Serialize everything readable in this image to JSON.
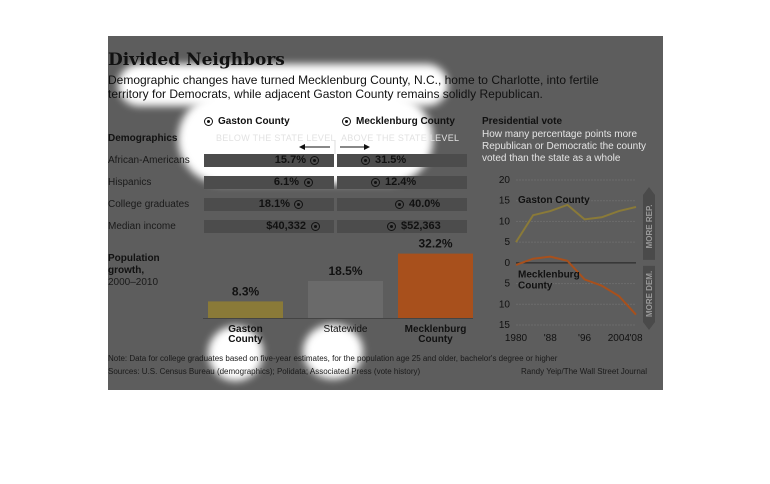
{
  "header": {
    "title": "Divided Neighbors",
    "subtitle": "Demographic changes have turned Mecklenburg County, N.C., home to Charlotte, into fertile territory for Democrats, while adjacent Gaston County remains solidly Republican."
  },
  "legend": {
    "gaston": "Gaston County",
    "mecklenburg": "Mecklenburg County",
    "below": "BELOW THE STATE LEVEL",
    "above": "ABOVE THE STATE LEVEL"
  },
  "demographics": {
    "heading": "Demographics",
    "rows": [
      {
        "label": "African-Americans",
        "gaston": "15.7%",
        "mecklenburg": "31.5%"
      },
      {
        "label": "Hispanics",
        "gaston": "6.1%",
        "mecklenburg": "12.4%"
      },
      {
        "label": "College graduates",
        "gaston": "18.1%",
        "mecklenburg": "40.0%"
      },
      {
        "label": "Median income",
        "gaston": "$40,332",
        "mecklenburg": "$52,363"
      }
    ]
  },
  "population": {
    "title": "Population growth,",
    "period": "2000–2010"
  },
  "presidential": {
    "title": "Presidential vote",
    "description": "How many percentage points more Republican or Democratic the county voted than the state as a whole",
    "more_rep": "MORE REP.",
    "more_dem": "MORE DEM."
  },
  "footer": {
    "note": "Note: Data for college graduates based on five-year estimates, for the population age 25 and older, bachelor's degree or higher",
    "sources": "Sources: U.S. Census Bureau (demographics); Polidata; Associated Press (vote history)",
    "credit": "Randy Yeip/The Wall Street Journal"
  },
  "colors": {
    "gaston": "#8a7a38",
    "statewide": "#6a6a6a",
    "mecklenburg": "#a8501c",
    "panel": "#5d5d5d"
  },
  "chart_data": [
    {
      "type": "bar",
      "categories": [
        "Gaston County",
        "Statewide",
        "Mecklenburg County"
      ],
      "values": [
        8.3,
        18.5,
        32.2
      ],
      "labels": [
        "8.3%",
        "18.5%",
        "32.2%"
      ],
      "ylim": [
        0,
        35
      ]
    },
    {
      "type": "line",
      "title": "Presidential vote",
      "x": [
        1980,
        1984,
        1988,
        1992,
        1996,
        2000,
        2004,
        2008
      ],
      "x_tick_labels": [
        "1980",
        "'88",
        "'96",
        "2004",
        "'08"
      ],
      "x_ticks": [
        1980,
        1988,
        1996,
        2004,
        2008
      ],
      "y_tick_labels": [
        "20",
        "15",
        "10",
        "5",
        "0",
        "5",
        "10",
        "15"
      ],
      "y_ticks": [
        20,
        15,
        10,
        5,
        0,
        -5,
        -10,
        -15
      ],
      "ylim": [
        -15,
        20
      ],
      "series": [
        {
          "name": "Gaston County",
          "values": [
            5,
            11.5,
            12.5,
            14,
            10.5,
            11,
            12.5,
            13.5
          ]
        },
        {
          "name": "Mecklenburg County",
          "values": [
            -0.5,
            1,
            1.5,
            0.5,
            -4,
            -5.5,
            -8,
            -12.5
          ]
        }
      ]
    }
  ]
}
